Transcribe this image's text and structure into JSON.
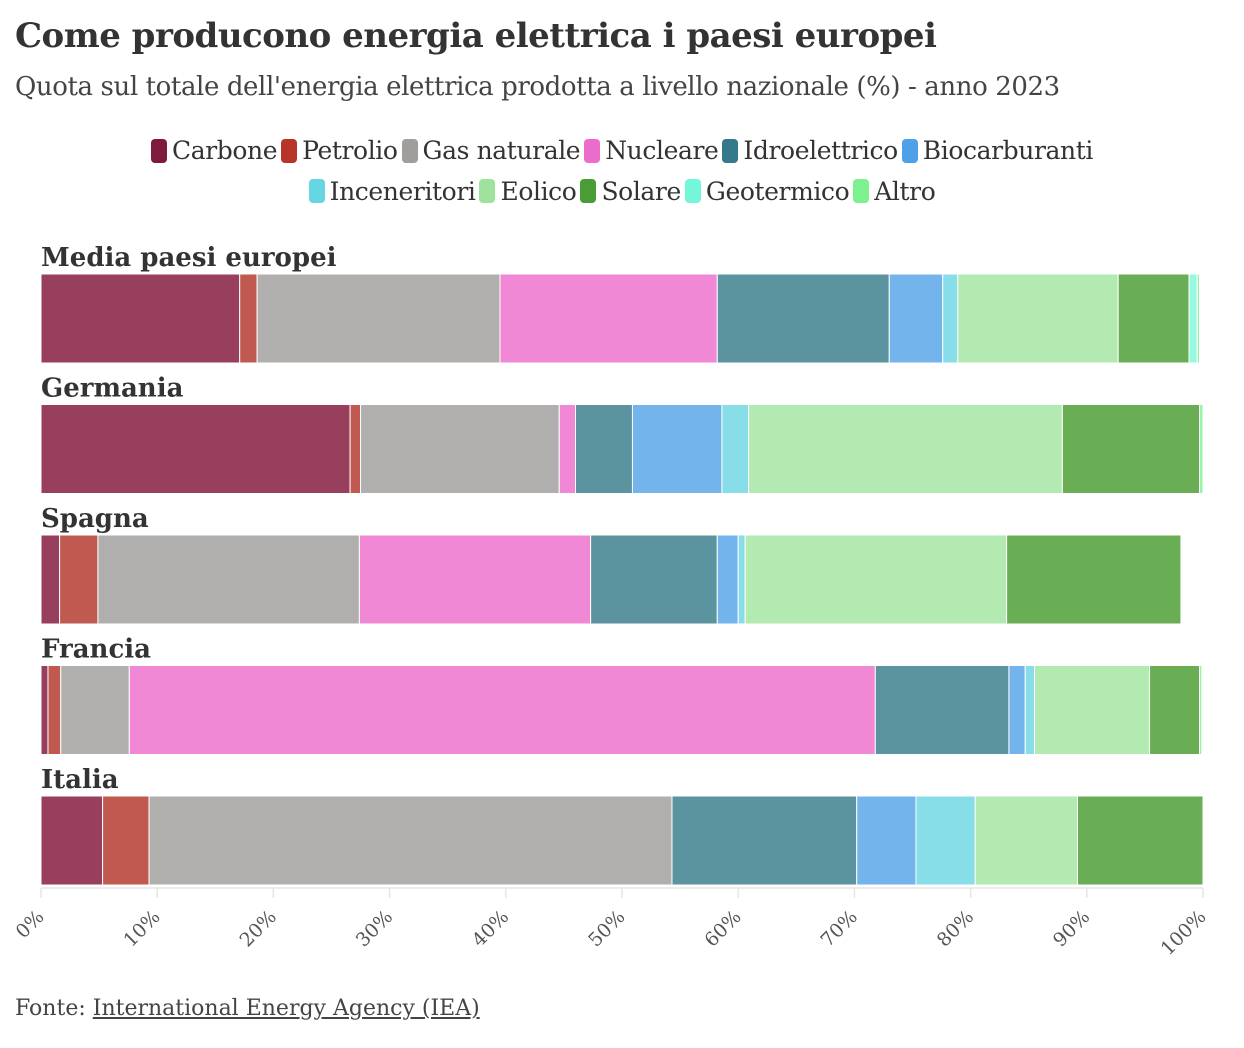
{
  "header": {
    "title": "Come producono energia elettrica i paesi europei",
    "subtitle": "Quota sul totale dell'energia elettrica prodotta a livello nazionale (%) - anno 2023"
  },
  "legend": {
    "rows": [
      [
        {
          "label": "Carbone",
          "color": "#7f1a3f"
        },
        {
          "label": "Petrolio",
          "color": "#b8342a"
        },
        {
          "label": "Gas naturale",
          "color": "#a09e9d"
        },
        {
          "label": "Nucleare",
          "color": "#ec6ccb"
        },
        {
          "label": "Idroelettrico",
          "color": "#357a8a"
        },
        {
          "label": "Biocarburanti",
          "color": "#4ea1e8"
        }
      ],
      [
        {
          "label": "Inceneritori",
          "color": "#66d6e3"
        },
        {
          "label": "Eolico",
          "color": "#9ee29d"
        },
        {
          "label": "Solare",
          "color": "#4a9c36"
        },
        {
          "label": "Geotermico",
          "color": "#74f7d8"
        },
        {
          "label": "Altro",
          "color": "#7df08f"
        }
      ]
    ]
  },
  "chart_data": {
    "type": "bar",
    "orientation": "horizontal",
    "stacked": true,
    "title": "Come producono energia elettrica i paesi europei",
    "subtitle": "Quota sul totale dell'energia elettrica prodotta a livello nazionale (%) - anno 2023",
    "xlabel": "",
    "ylabel": "",
    "xlim": [
      0,
      100
    ],
    "x_ticks": [
      "0%",
      "10%",
      "20%",
      "30%",
      "40%",
      "50%",
      "60%",
      "70%",
      "80%",
      "90%",
      "100%"
    ],
    "legend_position": "top-center",
    "categories": [
      "Media paesi europei",
      "Germania",
      "Spagna",
      "Francia",
      "Italia"
    ],
    "series": [
      {
        "name": "Carbone",
        "color": "#983f5d",
        "values": [
          17.1,
          26.6,
          1.6,
          0.6,
          5.3
        ]
      },
      {
        "name": "Petrolio",
        "color": "#c05a51",
        "values": [
          1.5,
          0.9,
          3.3,
          1.1,
          4.0
        ]
      },
      {
        "name": "Gas naturale",
        "color": "#b0afad",
        "values": [
          20.9,
          17.1,
          22.5,
          5.9,
          45.0
        ]
      },
      {
        "name": "Nucleare",
        "color": "#f088d6",
        "values": [
          18.7,
          1.4,
          19.9,
          64.2,
          0
        ]
      },
      {
        "name": "Idroelettrico",
        "color": "#5b939f",
        "values": [
          14.8,
          4.9,
          10.9,
          11.5,
          15.9
        ]
      },
      {
        "name": "Biocarburanti",
        "color": "#72b4eb",
        "values": [
          4.6,
          7.7,
          1.8,
          1.4,
          5.1
        ]
      },
      {
        "name": "Inceneritori",
        "color": "#87dee8",
        "values": [
          1.3,
          2.3,
          0.6,
          0.8,
          5.1
        ]
      },
      {
        "name": "Eolico",
        "color": "#b2eab1",
        "values": [
          13.8,
          27.0,
          22.5,
          9.9,
          8.8
        ]
      },
      {
        "name": "Solare",
        "color": "#69ad55",
        "values": [
          6.1,
          11.8,
          15.0,
          4.3,
          10.8
        ]
      },
      {
        "name": "Geotermico",
        "color": "#96f9e2",
        "values": [
          0.7,
          0,
          0,
          0,
          0
        ]
      },
      {
        "name": "Altro",
        "color": "#99f3a7",
        "values": [
          0.2,
          0.3,
          0,
          0.2,
          0
        ]
      }
    ]
  },
  "source": {
    "prefix": "Fonte: ",
    "link_text": "International Energy Agency (IEA)"
  }
}
